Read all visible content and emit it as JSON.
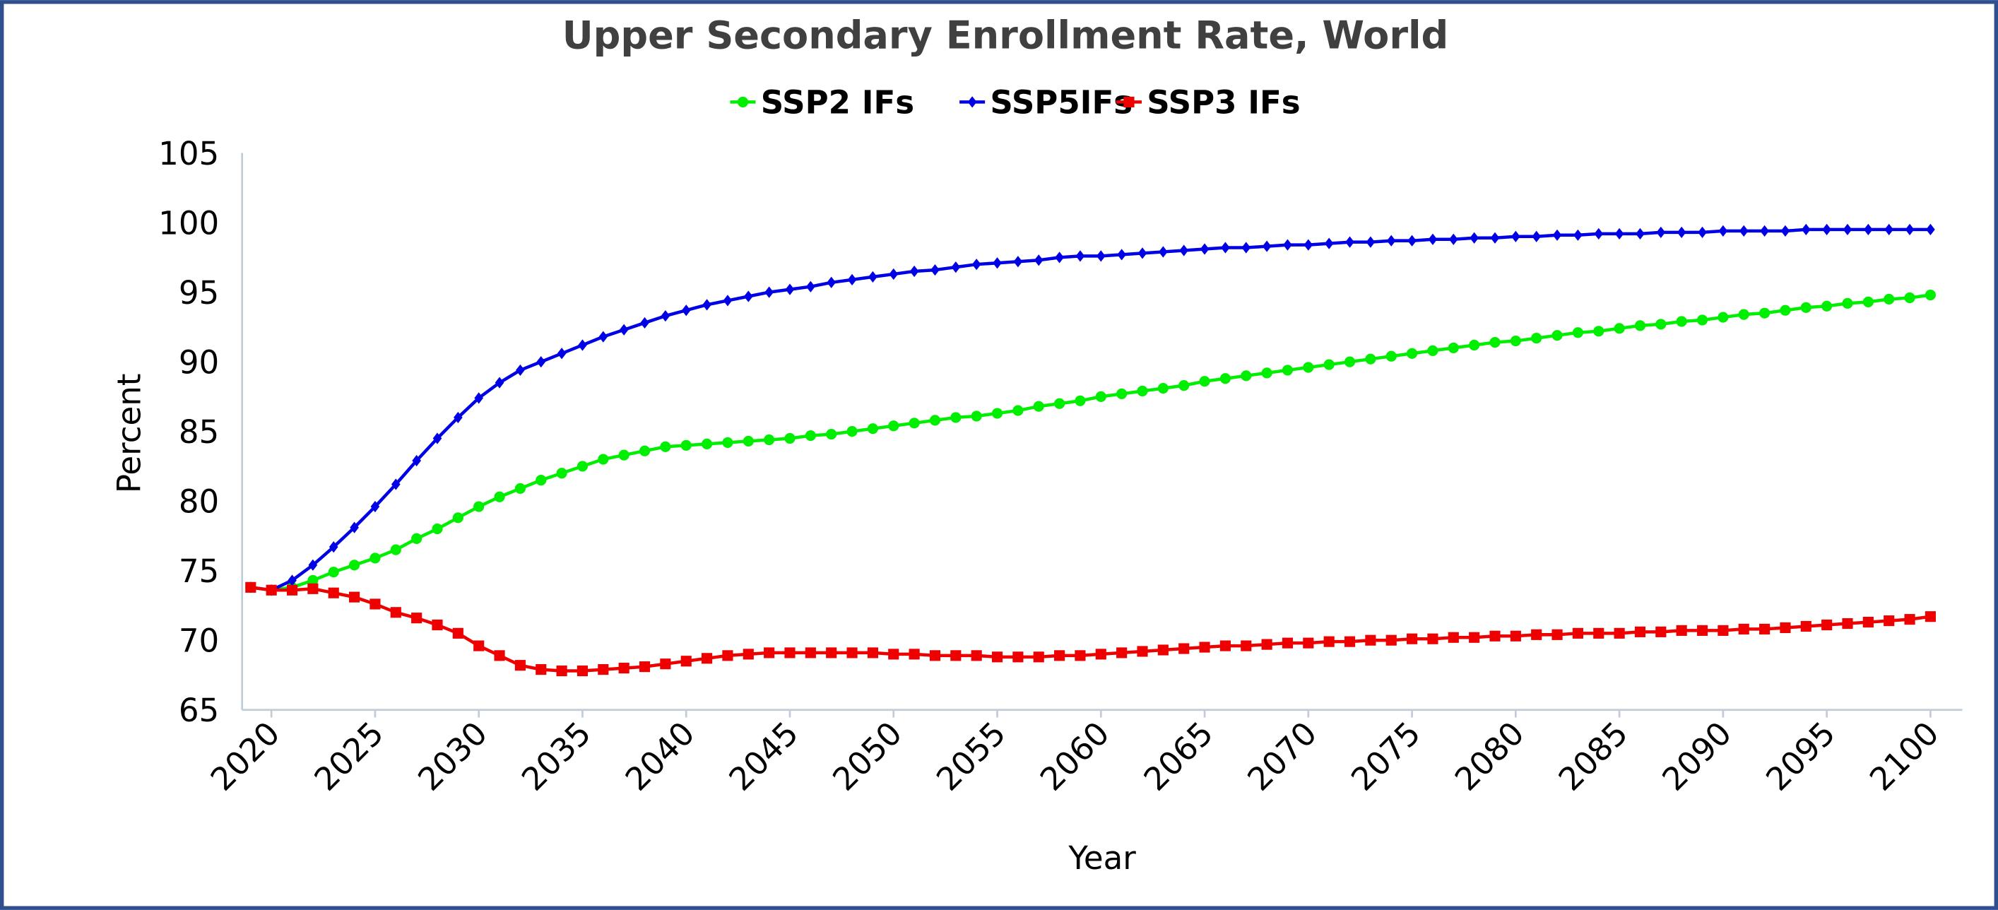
{
  "chart_data": {
    "type": "line",
    "title": "Upper Secondary Enrollment Rate, World",
    "xlabel": "Year",
    "ylabel": "Percent",
    "ylim": [
      65,
      105
    ],
    "yticks": [
      65,
      70,
      75,
      80,
      85,
      90,
      95,
      100,
      105
    ],
    "xlim": [
      2019,
      2100
    ],
    "xticks": [
      2020,
      2025,
      2030,
      2035,
      2040,
      2045,
      2050,
      2055,
      2060,
      2065,
      2070,
      2075,
      2080,
      2085,
      2090,
      2095,
      2100
    ],
    "legend_position": "top-center",
    "grid": false,
    "x_start": 2019,
    "series": [
      {
        "name": "SSP2 IFs",
        "color": "#00ee00",
        "marker": "circle",
        "values": [
          73.8,
          73.6,
          73.8,
          74.3,
          74.9,
          75.4,
          75.9,
          76.5,
          77.3,
          78.0,
          78.8,
          79.6,
          80.3,
          80.9,
          81.5,
          82.0,
          82.5,
          83.0,
          83.3,
          83.6,
          83.9,
          84.0,
          84.1,
          84.2,
          84.3,
          84.4,
          84.5,
          84.7,
          84.8,
          85.0,
          85.2,
          85.4,
          85.6,
          85.8,
          86.0,
          86.1,
          86.3,
          86.5,
          86.8,
          87.0,
          87.2,
          87.5,
          87.7,
          87.9,
          88.1,
          88.3,
          88.6,
          88.8,
          89.0,
          89.2,
          89.4,
          89.6,
          89.8,
          90.0,
          90.2,
          90.4,
          90.6,
          90.8,
          91.0,
          91.2,
          91.4,
          91.5,
          91.7,
          91.9,
          92.1,
          92.2,
          92.4,
          92.6,
          92.7,
          92.9,
          93.0,
          93.2,
          93.4,
          93.5,
          93.7,
          93.9,
          94.0,
          94.2,
          94.3,
          94.5,
          94.6,
          94.8
        ]
      },
      {
        "name": "SSP5IFs",
        "color": "#0000e6",
        "marker": "diamond",
        "values": [
          73.8,
          73.6,
          74.3,
          75.4,
          76.7,
          78.1,
          79.6,
          81.2,
          82.9,
          84.5,
          86.0,
          87.4,
          88.5,
          89.4,
          90.0,
          90.6,
          91.2,
          91.8,
          92.3,
          92.8,
          93.3,
          93.7,
          94.1,
          94.4,
          94.7,
          95.0,
          95.2,
          95.4,
          95.7,
          95.9,
          96.1,
          96.3,
          96.5,
          96.6,
          96.8,
          97.0,
          97.1,
          97.2,
          97.3,
          97.5,
          97.6,
          97.6,
          97.7,
          97.8,
          97.9,
          98.0,
          98.1,
          98.2,
          98.2,
          98.3,
          98.4,
          98.4,
          98.5,
          98.6,
          98.6,
          98.7,
          98.7,
          98.8,
          98.8,
          98.9,
          98.9,
          99.0,
          99.0,
          99.1,
          99.1,
          99.2,
          99.2,
          99.2,
          99.3,
          99.3,
          99.3,
          99.4,
          99.4,
          99.4,
          99.4,
          99.5,
          99.5,
          99.5,
          99.5,
          99.5,
          99.5,
          99.5
        ]
      },
      {
        "name": "SSP3 IFs",
        "color": "#ee0000",
        "marker": "square",
        "values": [
          73.8,
          73.6,
          73.6,
          73.7,
          73.4,
          73.1,
          72.6,
          72.0,
          71.6,
          71.1,
          70.5,
          69.6,
          68.9,
          68.2,
          67.9,
          67.8,
          67.8,
          67.9,
          68.0,
          68.1,
          68.3,
          68.5,
          68.7,
          68.9,
          69.0,
          69.1,
          69.1,
          69.1,
          69.1,
          69.1,
          69.1,
          69.0,
          69.0,
          68.9,
          68.9,
          68.9,
          68.8,
          68.8,
          68.8,
          68.9,
          68.9,
          69.0,
          69.1,
          69.2,
          69.3,
          69.4,
          69.5,
          69.6,
          69.6,
          69.7,
          69.8,
          69.8,
          69.9,
          69.9,
          70.0,
          70.0,
          70.1,
          70.1,
          70.2,
          70.2,
          70.3,
          70.3,
          70.4,
          70.4,
          70.5,
          70.5,
          70.5,
          70.6,
          70.6,
          70.7,
          70.7,
          70.7,
          70.8,
          70.8,
          70.9,
          71.0,
          71.1,
          71.2,
          71.3,
          71.4,
          71.5,
          71.7
        ]
      }
    ]
  }
}
